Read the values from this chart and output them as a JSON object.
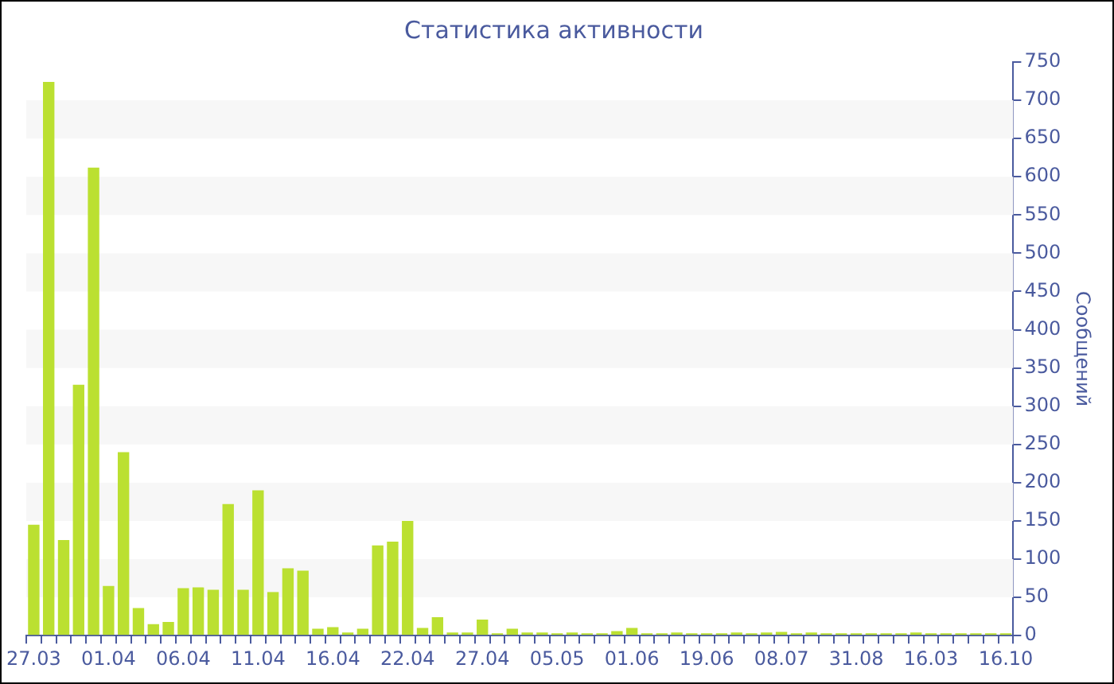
{
  "chart_data": {
    "type": "bar",
    "title": "Статистика активности",
    "ylabel": "Сообщений",
    "categories": [
      "27.03",
      null,
      null,
      null,
      null,
      "01.04",
      null,
      null,
      null,
      null,
      "06.04",
      null,
      null,
      null,
      null,
      "11.04",
      null,
      null,
      null,
      null,
      "16.04",
      null,
      null,
      null,
      null,
      "22.04",
      null,
      null,
      null,
      null,
      "27.04",
      null,
      null,
      null,
      null,
      "05.05",
      null,
      null,
      null,
      null,
      "01.06",
      null,
      null,
      null,
      null,
      "19.06",
      null,
      null,
      null,
      null,
      "08.07",
      null,
      null,
      null,
      null,
      "31.08",
      null,
      null,
      null,
      null,
      "16.03",
      null,
      null,
      null,
      null,
      "16.10"
    ],
    "values": [
      145,
      724,
      125,
      328,
      612,
      65,
      240,
      36,
      15,
      18,
      62,
      63,
      60,
      172,
      60,
      190,
      57,
      88,
      85,
      9,
      11,
      4,
      9,
      118,
      123,
      150,
      10,
      24,
      4,
      4,
      21,
      3,
      9,
      4,
      4,
      3,
      4,
      3,
      3,
      6,
      10,
      3,
      3,
      4,
      3,
      3,
      3,
      4,
      3,
      4,
      5,
      3,
      4,
      3,
      3,
      3,
      3,
      3,
      3,
      4,
      3,
      3,
      3,
      3,
      3,
      3
    ],
    "color": "#bbe031",
    "ylim": [
      0,
      750
    ],
    "yticks": [
      0,
      50,
      100,
      150,
      200,
      250,
      300,
      350,
      400,
      450,
      500,
      550,
      600,
      650,
      700,
      750
    ],
    "bands": [
      {
        "axis": "y",
        "from": 50,
        "to": 100,
        "color": "#f7f7f7"
      },
      {
        "axis": "y",
        "from": 150,
        "to": 200,
        "color": "#f7f7f7"
      },
      {
        "axis": "y",
        "from": 250,
        "to": 300,
        "color": "#f7f7f7"
      },
      {
        "axis": "y",
        "from": 350,
        "to": 400,
        "color": "#f7f7f7"
      },
      {
        "axis": "y",
        "from": 450,
        "to": 500,
        "color": "#f7f7f7"
      },
      {
        "axis": "y",
        "from": 550,
        "to": 600,
        "color": "#f7f7f7"
      },
      {
        "axis": "y",
        "from": 650,
        "to": 700,
        "color": "#f7f7f7"
      }
    ],
    "legend": false
  }
}
